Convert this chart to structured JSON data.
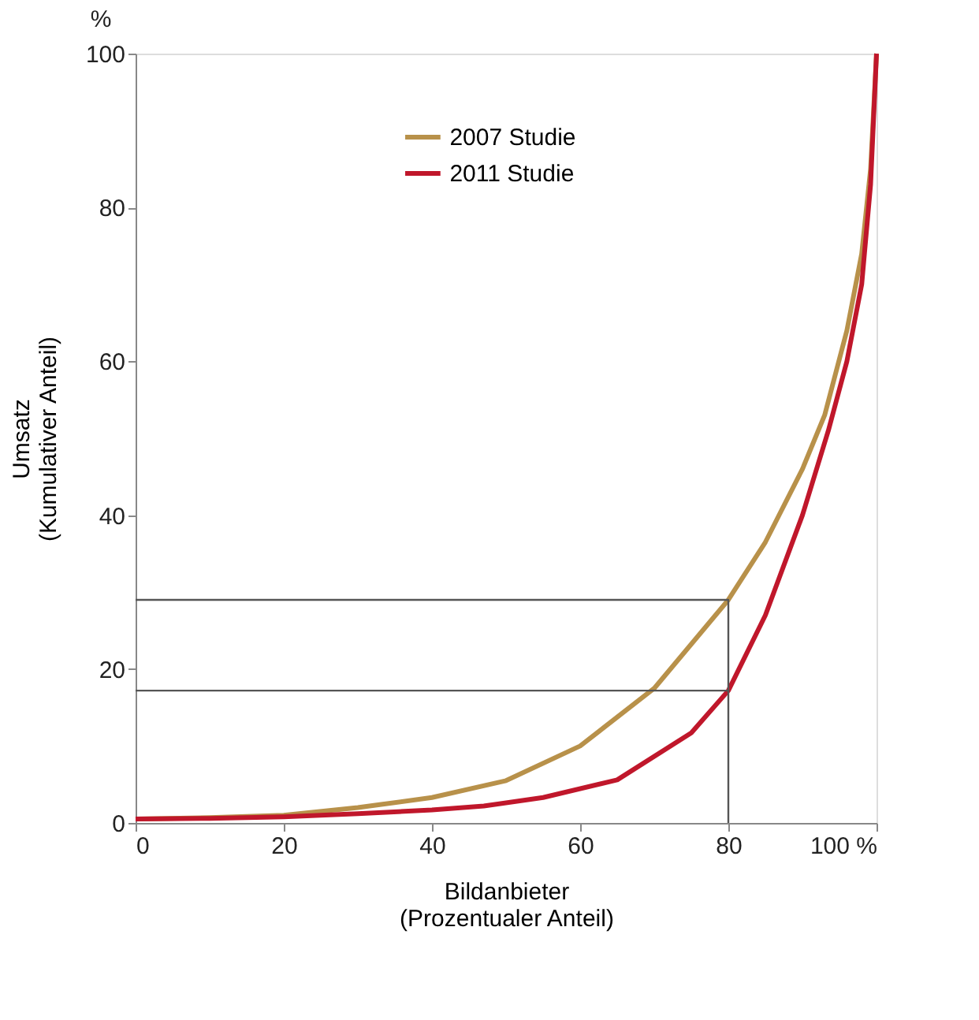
{
  "chart_data": {
    "type": "line",
    "xlabel": "Bildanbieter\n(Prozentualer Anteil)",
    "ylabel": "Umsatz\n(Kumulativer Anteil)",
    "annotations": [
      "%"
    ],
    "xlim": [
      0,
      100
    ],
    "ylim": [
      0,
      100
    ],
    "xticks": [
      0,
      20,
      40,
      60,
      {
        "value": 80,
        "label": "80"
      },
      {
        "value": 100,
        "label": "100 %"
      }
    ],
    "yticks": [
      0,
      20,
      40,
      60,
      80,
      100
    ],
    "grid": false,
    "legend": "top",
    "marker": "none",
    "line_style": "solid",
    "series": [
      {
        "name": "2007 Studie",
        "color": "#b8914a",
        "x": [
          0,
          10,
          20,
          30,
          40,
          50,
          60,
          70,
          80,
          85,
          90,
          93,
          96,
          98,
          99.2,
          100
        ],
        "values": [
          0.5,
          0.7,
          1,
          2,
          3.3,
          5.5,
          10,
          17.5,
          29,
          36.5,
          46,
          53,
          64,
          74,
          85,
          100
        ]
      },
      {
        "name": "2011 Studie",
        "color": "#c0172b",
        "x": [
          0,
          10,
          20,
          30,
          40,
          47,
          55,
          65,
          75,
          80,
          85,
          90,
          93.5,
          96,
          98,
          99.2,
          100
        ],
        "values": [
          0.5,
          0.6,
          0.8,
          1.2,
          1.7,
          2.2,
          3.3,
          5.6,
          11.7,
          17.2,
          27,
          40,
          51,
          60,
          70,
          83,
          100
        ]
      },
      {
        "color": "#555555",
        "type": "line",
        "x": [
          0,
          80,
          80
        ],
        "values": [
          29,
          29,
          0
        ]
      },
      {
        "color": "#555555",
        "type": "line",
        "x": [
          0,
          80
        ],
        "values": [
          17.2,
          17.2
        ]
      }
    ]
  }
}
